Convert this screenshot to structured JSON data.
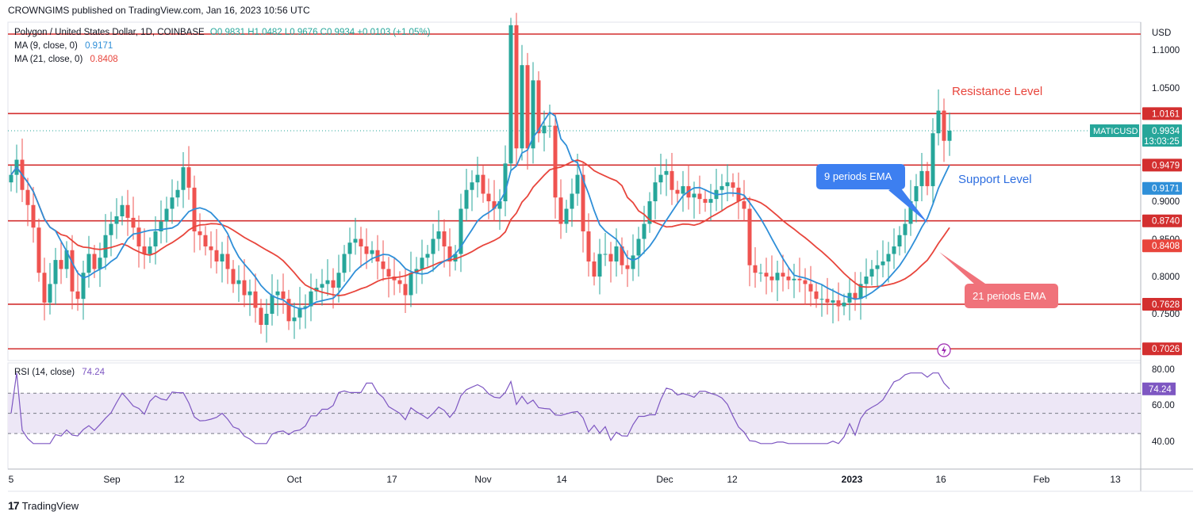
{
  "publish_line": "CROWNGIMS published on TradingView.com, Jan 16, 2023 10:56 UTC",
  "footer": {
    "logo": "17",
    "brand": "TradingView"
  },
  "legend": {
    "symbol": "Polygon / United States Dollar, 1D, COINBASE",
    "ohlc": "O0.9831  H1.0482  L0.9676  C0.9934  +0.0103 (+1.05%)",
    "ma9_label": "MA (9, close, 0)",
    "ma9_value": "0.9171",
    "ma21_label": "MA (21, close, 0)",
    "ma21_value": "0.8408",
    "rsi_label": "RSI (14, close)",
    "rsi_value": "74.24"
  },
  "colors": {
    "up": "#26a69a",
    "down": "#ef5350",
    "ma9": "#2f8fd8",
    "ma21": "#e8453c",
    "level": "#d32f2f",
    "rsi": "#7e57c2",
    "rsi_band": "#ede7f6",
    "ema9_callout": "#3d7ff0",
    "ema21_callout": "#f0727a"
  },
  "annotations": {
    "resistance": "Resistance Level",
    "support": "Support Level",
    "ema9": "9 periods EMA",
    "ema21": "21 periods EMA"
  },
  "chart_data": {
    "type": "candlestick",
    "title": "Polygon / United States Dollar, 1D, COINBASE",
    "currency": "USD",
    "price_axis_ticks": [
      "1.1000",
      "1.0500",
      "0.9000",
      "0.8500",
      "0.8000",
      "0.7500"
    ],
    "x_tick_labels": [
      "5",
      "Sep",
      "12",
      "Oct",
      "17",
      "Nov",
      "14",
      "Dec",
      "12",
      "2023",
      "16",
      "Feb",
      "13"
    ],
    "horizontal_levels": [
      1.122,
      1.0161,
      0.9479,
      0.874,
      0.7628,
      0.7026
    ],
    "price_labels": [
      {
        "text": "USD"
      },
      {
        "text": "1.0161",
        "value": 1.0161,
        "color": "#d32f2f"
      },
      {
        "text": "MATICUSD",
        "value": 0.9934,
        "color": "#26a69a"
      },
      {
        "text": "0.9934",
        "value": 0.9934,
        "color": "#26a69a",
        "sub": "13:03:25"
      },
      {
        "text": "0.9479",
        "value": 0.9479,
        "color": "#d32f2f"
      },
      {
        "text": "0.9171",
        "value": 0.9171,
        "color": "#2f8fd8"
      },
      {
        "text": "0.8740",
        "value": 0.874,
        "color": "#d32f2f"
      },
      {
        "text": "0.8408",
        "value": 0.8408,
        "color": "#e8453c"
      },
      {
        "text": "0.7628",
        "value": 0.7628,
        "color": "#d32f2f"
      },
      {
        "text": "0.7026",
        "value": 0.7026,
        "color": "#d32f2f"
      }
    ],
    "candles_close": [
      0.935,
      0.955,
      0.915,
      0.895,
      0.865,
      0.805,
      0.765,
      0.79,
      0.822,
      0.81,
      0.835,
      0.78,
      0.77,
      0.805,
      0.83,
      0.81,
      0.825,
      0.855,
      0.87,
      0.88,
      0.895,
      0.878,
      0.865,
      0.84,
      0.83,
      0.84,
      0.86,
      0.873,
      0.89,
      0.905,
      0.915,
      0.945,
      0.918,
      0.86,
      0.855,
      0.84,
      0.835,
      0.82,
      0.83,
      0.81,
      0.79,
      0.795,
      0.775,
      0.78,
      0.758,
      0.735,
      0.75,
      0.775,
      0.78,
      0.77,
      0.74,
      0.745,
      0.758,
      0.76,
      0.78,
      0.785,
      0.79,
      0.795,
      0.785,
      0.805,
      0.83,
      0.845,
      0.85,
      0.84,
      0.83,
      0.835,
      0.82,
      0.81,
      0.8,
      0.795,
      0.79,
      0.775,
      0.805,
      0.81,
      0.825,
      0.83,
      0.85,
      0.86,
      0.84,
      0.82,
      0.83,
      0.89,
      0.915,
      0.925,
      0.935,
      0.91,
      0.9,
      0.89,
      0.9,
      0.95,
      1.14,
      0.97,
      1.08,
      0.97,
      1.06,
      0.99,
      1.0,
      1.0,
      0.905,
      0.87,
      0.89,
      0.91,
      0.935,
      0.86,
      0.82,
      0.8,
      0.83,
      0.83,
      0.82,
      0.84,
      0.815,
      0.81,
      0.828,
      0.85,
      0.87,
      0.9,
      0.925,
      0.935,
      0.94,
      0.915,
      0.91,
      0.92,
      0.905,
      0.91,
      0.903,
      0.898,
      0.903,
      0.915,
      0.92,
      0.925,
      0.918,
      0.9,
      0.89,
      0.815,
      0.805,
      0.805,
      0.8,
      0.795,
      0.805,
      0.8,
      0.795,
      0.797,
      0.795,
      0.79,
      0.78,
      0.77,
      0.77,
      0.765,
      0.768,
      0.76,
      0.765,
      0.778,
      0.77,
      0.79,
      0.8,
      0.81,
      0.815,
      0.82,
      0.83,
      0.84,
      0.855,
      0.87,
      0.9,
      0.92,
      0.94,
      0.92,
      0.99,
      1.02,
      0.98,
      0.9934
    ],
    "ma9": "9-period moving average of close",
    "ma21": "21-period moving average of close",
    "rsi_axis_ticks": [
      "80.00",
      "60.00",
      "40.00"
    ],
    "rsi_current": 74.24
  }
}
